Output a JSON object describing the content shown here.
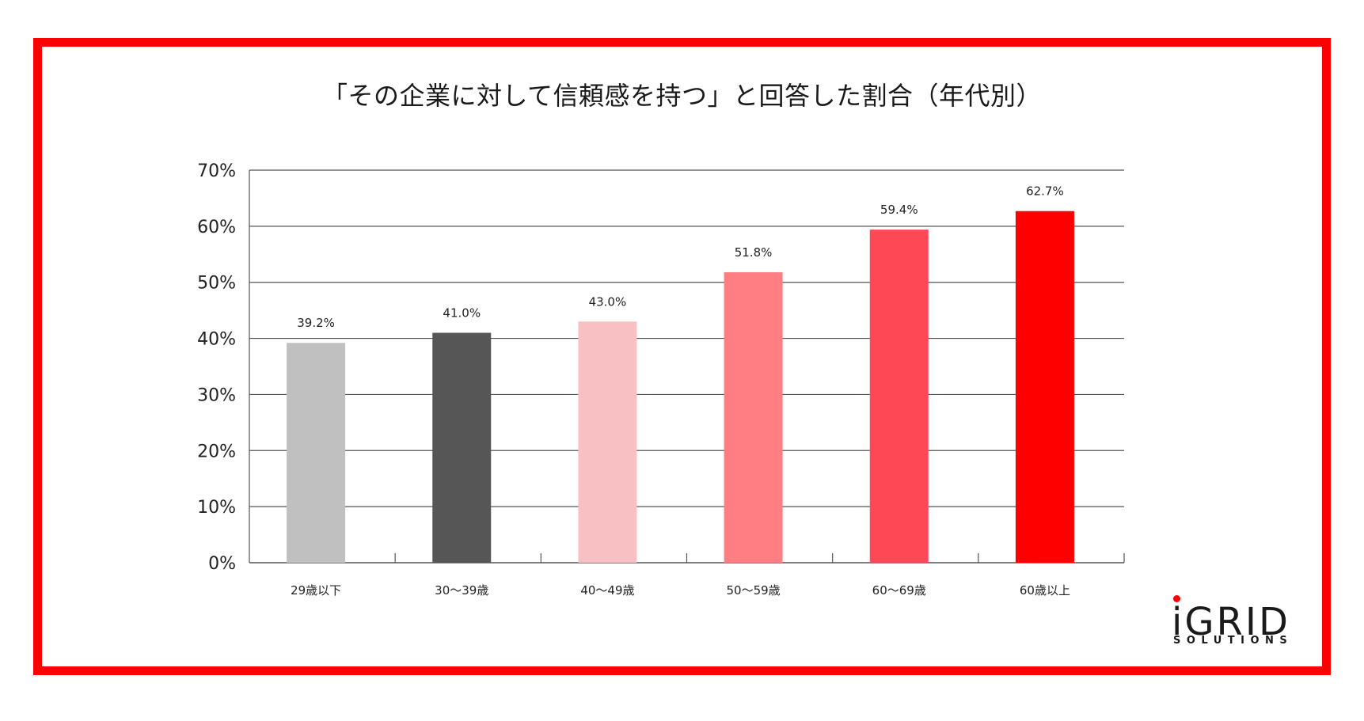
{
  "colors": {
    "frame": "#ff0000",
    "gridline": "#555555",
    "text": "#222222"
  },
  "chart_data": {
    "type": "bar",
    "title": "「その企業に対して信頼感を持つ」と回答した割合（年代別）",
    "xlabel": "",
    "ylabel": "",
    "categories": [
      "29歳以下",
      "30〜39歳",
      "40〜49歳",
      "50〜59歳",
      "60〜69歳",
      "60歳以上"
    ],
    "values": [
      39.2,
      41.0,
      43.0,
      51.8,
      59.4,
      62.7
    ],
    "value_labels": [
      "39.2%",
      "41.0%",
      "43.0%",
      "51.8%",
      "59.4%",
      "62.7%"
    ],
    "bar_colors": [
      "#c1c0c0",
      "#565656",
      "#f8c0c2",
      "#ff7e84",
      "#ff4856",
      "#ff0000"
    ],
    "ylim": [
      0,
      70
    ],
    "yticks": [
      0,
      10,
      20,
      30,
      40,
      50,
      60,
      70
    ],
    "ytick_labels": [
      "0%",
      "10%",
      "20%",
      "30%",
      "40%",
      "50%",
      "60%",
      "70%"
    ],
    "grid": true,
    "legend": "none"
  },
  "logo": {
    "main": "iGRID",
    "sub": "SOLUTIONS"
  }
}
